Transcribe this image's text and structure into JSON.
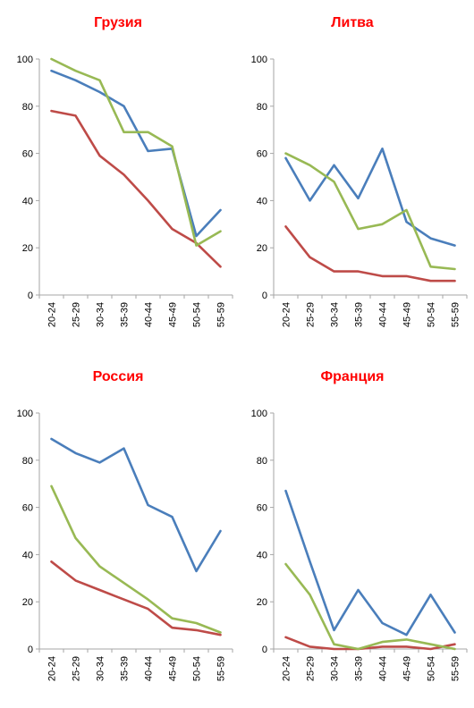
{
  "chart_data": [
    {
      "type": "line",
      "title": "Грузия",
      "categories": [
        "20-24",
        "25-29",
        "30-34",
        "35-39",
        "40-44",
        "45-49",
        "50-54",
        "55-59"
      ],
      "ylim": [
        0,
        100
      ],
      "yticks": [
        0,
        20,
        40,
        60,
        80,
        100
      ],
      "grid": false,
      "series": [
        {
          "color": "#4a7ebb",
          "values": [
            95,
            91,
            86,
            80,
            61,
            62,
            25,
            36
          ]
        },
        {
          "color": "#be4b48",
          "values": [
            78,
            76,
            59,
            51,
            40,
            28,
            22,
            12
          ]
        },
        {
          "color": "#98b954",
          "values": [
            100,
            95,
            91,
            69,
            69,
            63,
            21,
            27
          ]
        }
      ]
    },
    {
      "type": "line",
      "title": "Литва",
      "categories": [
        "20-24",
        "25-29",
        "30-34",
        "35-39",
        "40-44",
        "45-49",
        "50-54",
        "55-59"
      ],
      "ylim": [
        0,
        100
      ],
      "yticks": [
        0,
        20,
        40,
        60,
        80,
        100
      ],
      "grid": false,
      "series": [
        {
          "color": "#4a7ebb",
          "values": [
            58,
            40,
            55,
            41,
            62,
            31,
            24,
            21
          ]
        },
        {
          "color": "#be4b48",
          "values": [
            29,
            16,
            10,
            10,
            8,
            8,
            6,
            6
          ]
        },
        {
          "color": "#98b954",
          "values": [
            60,
            55,
            48,
            28,
            30,
            36,
            12,
            11
          ]
        }
      ]
    },
    {
      "type": "line",
      "title": "Россия",
      "categories": [
        "20-24",
        "25-29",
        "30-34",
        "35-39",
        "40-44",
        "45-49",
        "50-54",
        "55-59"
      ],
      "ylim": [
        0,
        100
      ],
      "yticks": [
        0,
        20,
        40,
        60,
        80,
        100
      ],
      "grid": false,
      "series": [
        {
          "color": "#4a7ebb",
          "values": [
            89,
            83,
            79,
            85,
            61,
            56,
            33,
            50
          ]
        },
        {
          "color": "#be4b48",
          "values": [
            37,
            29,
            25,
            21,
            17,
            9,
            8,
            6
          ]
        },
        {
          "color": "#98b954",
          "values": [
            69,
            47,
            35,
            28,
            21,
            13,
            11,
            7
          ]
        }
      ]
    },
    {
      "type": "line",
      "title": "Франция",
      "categories": [
        "20-24",
        "25-29",
        "30-34",
        "35-39",
        "40-44",
        "45-49",
        "50-54",
        "55-59"
      ],
      "ylim": [
        0,
        100
      ],
      "yticks": [
        0,
        20,
        40,
        60,
        80,
        100
      ],
      "grid": false,
      "series": [
        {
          "color": "#4a7ebb",
          "values": [
            67,
            37,
            8,
            25,
            11,
            6,
            23,
            7
          ]
        },
        {
          "color": "#be4b48",
          "values": [
            5,
            1,
            0,
            0,
            1,
            1,
            0,
            2
          ]
        },
        {
          "color": "#98b954",
          "values": [
            36,
            23,
            2,
            0,
            3,
            4,
            2,
            0
          ]
        }
      ]
    }
  ]
}
